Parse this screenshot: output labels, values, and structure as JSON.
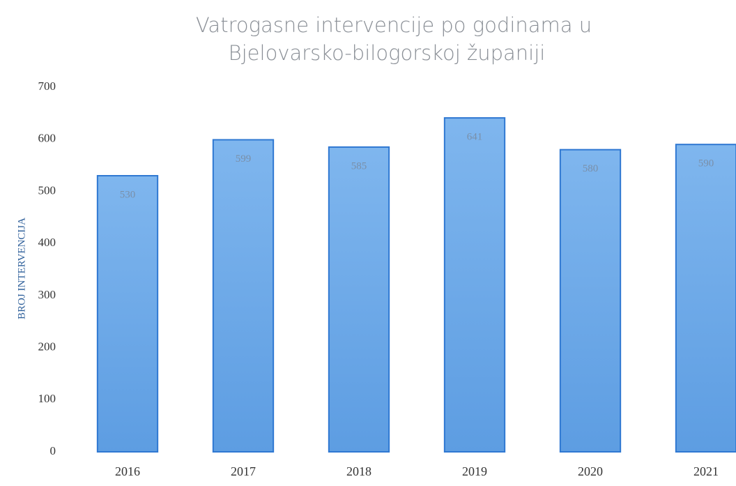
{
  "chart_data": {
    "type": "bar",
    "title": [
      "Vatrogasne intervencije po godinama u",
      "Bjelovarsko-bilogorskoj županiji"
    ],
    "y_label": "BROJ INTERVENCIJA",
    "categories": [
      "2016",
      "2017",
      "2018",
      "2019",
      "2020",
      "2021"
    ],
    "values": [
      530,
      599,
      585,
      641,
      580,
      590
    ],
    "color": "#6aa6e6",
    "ylim": [
      0,
      700
    ],
    "yticks": [
      0,
      100,
      200,
      300,
      400,
      500,
      600,
      700
    ],
    "grid": false
  }
}
